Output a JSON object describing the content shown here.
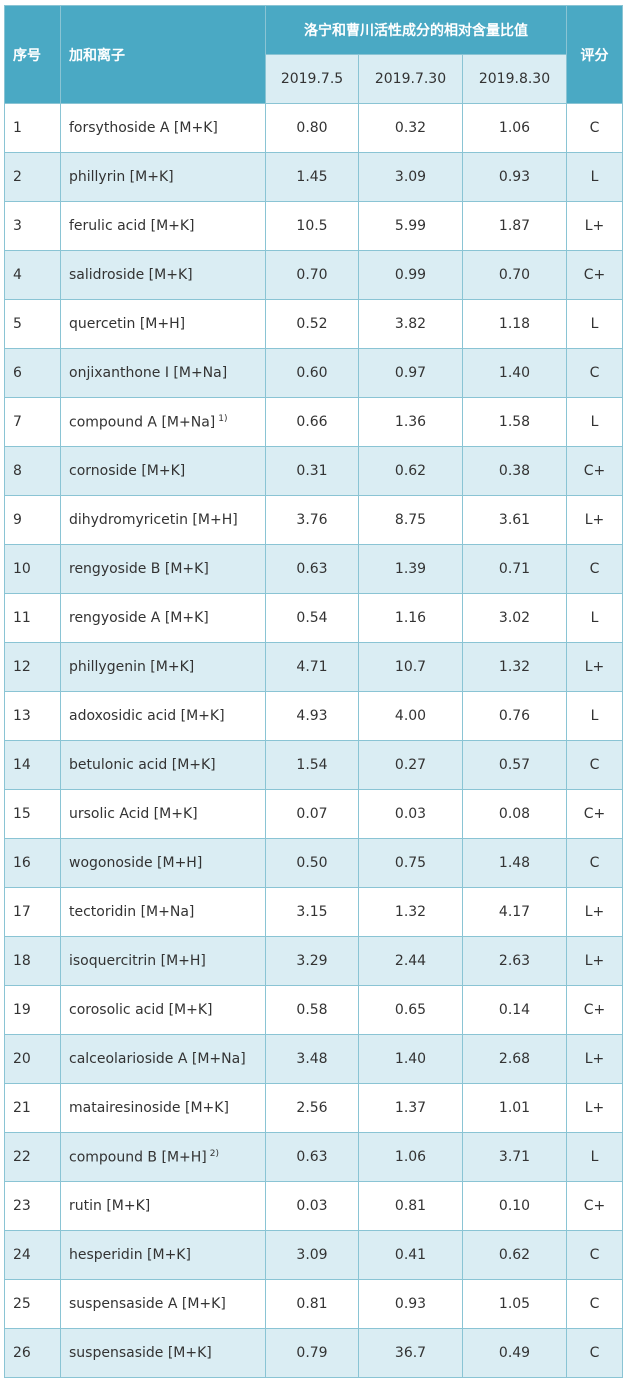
{
  "headers": {
    "no": "序号",
    "adduct": "加和离子",
    "ratio": "洛宁和曹川活性成分的相对含量比值",
    "score": "评分",
    "dates": [
      "2019.7.5",
      "2019.7.30",
      "2019.8.30"
    ]
  },
  "rows": [
    {
      "no": "1",
      "name": "forsythoside A [M+K]",
      "note": "",
      "v1": "0.80",
      "v2": "0.32",
      "v3": "1.06",
      "score": "C"
    },
    {
      "no": "2",
      "name": "phillyrin [M+K]",
      "note": "",
      "v1": "1.45",
      "v2": "3.09",
      "v3": "0.93",
      "score": "L"
    },
    {
      "no": "3",
      "name": "ferulic acid [M+K]",
      "note": "",
      "v1": "10.5",
      "v2": "5.99",
      "v3": "1.87",
      "score": "L+"
    },
    {
      "no": "4",
      "name": "salidroside [M+K]",
      "note": "",
      "v1": "0.70",
      "v2": "0.99",
      "v3": "0.70",
      "score": "C+"
    },
    {
      "no": "5",
      "name": "quercetin [M+H]",
      "note": "",
      "v1": "0.52",
      "v2": "3.82",
      "v3": "1.18",
      "score": "L"
    },
    {
      "no": "6",
      "name": "onjixanthone I [M+Na]",
      "note": "",
      "v1": "0.60",
      "v2": "0.97",
      "v3": "1.40",
      "score": "C"
    },
    {
      "no": "7",
      "name": "compound A [M+Na]",
      "note": "1)",
      "v1": "0.66",
      "v2": "1.36",
      "v3": "1.58",
      "score": "L"
    },
    {
      "no": "8",
      "name": "cornoside [M+K]",
      "note": "",
      "v1": "0.31",
      "v2": "0.62",
      "v3": "0.38",
      "score": "C+"
    },
    {
      "no": "9",
      "name": "dihydromyricetin [M+H]",
      "note": "",
      "v1": "3.76",
      "v2": "8.75",
      "v3": "3.61",
      "score": "L+"
    },
    {
      "no": "10",
      "name": "rengyoside B [M+K]",
      "note": "",
      "v1": "0.63",
      "v2": "1.39",
      "v3": "0.71",
      "score": "C"
    },
    {
      "no": "11",
      "name": "rengyoside A [M+K]",
      "note": "",
      "v1": "0.54",
      "v2": "1.16",
      "v3": "3.02",
      "score": "L"
    },
    {
      "no": "12",
      "name": "phillygenin [M+K]",
      "note": "",
      "v1": "4.71",
      "v2": "10.7",
      "v3": "1.32",
      "score": "L+"
    },
    {
      "no": "13",
      "name": "adoxosidic acid [M+K]",
      "note": "",
      "v1": "4.93",
      "v2": "4.00",
      "v3": "0.76",
      "score": "L"
    },
    {
      "no": "14",
      "name": "betulonic acid [M+K]",
      "note": "",
      "v1": "1.54",
      "v2": "0.27",
      "v3": "0.57",
      "score": "C"
    },
    {
      "no": "15",
      "name": "ursolic Acid [M+K]",
      "note": "",
      "v1": "0.07",
      "v2": "0.03",
      "v3": "0.08",
      "score": "C+"
    },
    {
      "no": "16",
      "name": "wogonoside [M+H]",
      "note": "",
      "v1": "0.50",
      "v2": "0.75",
      "v3": "1.48",
      "score": "C"
    },
    {
      "no": "17",
      "name": "tectoridin [M+Na]",
      "note": "",
      "v1": "3.15",
      "v2": "1.32",
      "v3": "4.17",
      "score": "L+"
    },
    {
      "no": "18",
      "name": "isoquercitrin [M+H]",
      "note": "",
      "v1": "3.29",
      "v2": "2.44",
      "v3": "2.63",
      "score": "L+"
    },
    {
      "no": "19",
      "name": "corosolic acid [M+K]",
      "note": "",
      "v1": "0.58",
      "v2": "0.65",
      "v3": "0.14",
      "score": "C+"
    },
    {
      "no": "20",
      "name": "calceolarioside A [M+Na]",
      "note": "",
      "v1": "3.48",
      "v2": "1.40",
      "v3": "2.68",
      "score": "L+"
    },
    {
      "no": "21",
      "name": "matairesinoside [M+K]",
      "note": "",
      "v1": "2.56",
      "v2": "1.37",
      "v3": "1.01",
      "score": "L+"
    },
    {
      "no": "22",
      "name": "compound B [M+H]",
      "note": "2)",
      "v1": "0.63",
      "v2": "1.06",
      "v3": "3.71",
      "score": "L"
    },
    {
      "no": "23",
      "name": "rutin [M+K]",
      "note": "",
      "v1": "0.03",
      "v2": "0.81",
      "v3": "0.10",
      "score": "C+"
    },
    {
      "no": "24",
      "name": "hesperidin [M+K]",
      "note": "",
      "v1": "3.09",
      "v2": "0.41",
      "v3": "0.62",
      "score": "C"
    },
    {
      "no": "25",
      "name": "suspensaside A [M+K]",
      "note": "",
      "v1": "0.81",
      "v2": "0.93",
      "v3": "1.05",
      "score": "C"
    },
    {
      "no": "26",
      "name": "suspensaside [M+K]",
      "note": "",
      "v1": "0.79",
      "v2": "36.7",
      "v3": "0.49",
      "score": "C"
    }
  ]
}
